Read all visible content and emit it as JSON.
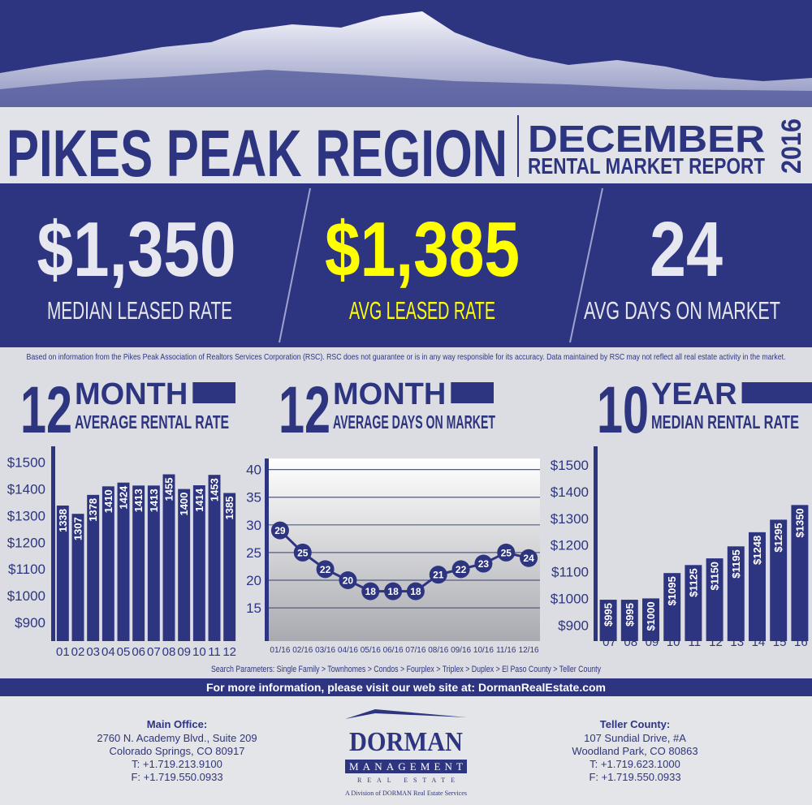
{
  "header": {
    "title": "PIKES PEAK REGION",
    "month": "DECEMBER",
    "report": "RENTAL MARKET REPORT",
    "year": "2016"
  },
  "stats": [
    {
      "value": "$1,350",
      "label": "MEDIAN LEASED RATE"
    },
    {
      "value": "$1,385",
      "label": "AVG LEASED RATE"
    },
    {
      "value": "24",
      "label": "AVG DAYS ON MARKET"
    }
  ],
  "disclaimer": "Based on information from the Pikes Peak Association of Realtors Services Corporation (RSC). RSC does not guarantee or is in any way responsible for its accuracy. Data maintained by RSC may not reflect all real estate activity in the market.",
  "chart_data": [
    {
      "type": "bar",
      "title_number": "12",
      "title_word": "MONTH",
      "subtitle": "AVERAGE RENTAL RATE",
      "categories": [
        "01",
        "02",
        "03",
        "04",
        "05",
        "06",
        "07",
        "08",
        "09",
        "10",
        "11",
        "12"
      ],
      "values": [
        1338,
        1307,
        1378,
        1410,
        1424,
        1413,
        1413,
        1455,
        1400,
        1414,
        1453,
        1385
      ],
      "color": "#2e3580",
      "ylim": [
        830,
        1560
      ],
      "yticks": [
        {
          "value": 900,
          "label": "$900"
        },
        {
          "value": 1000,
          "label": "$1000"
        },
        {
          "value": 1100,
          "label": "$1100"
        },
        {
          "value": 1200,
          "label": "$1200"
        },
        {
          "value": 1300,
          "label": "$1300"
        },
        {
          "value": 1400,
          "label": "$1400"
        },
        {
          "value": 1500,
          "label": "$1500"
        }
      ]
    },
    {
      "type": "line",
      "title_number": "12",
      "title_word": "MONTH",
      "subtitle": "AVERAGE DAYS ON MARKET",
      "categories": [
        "01/16",
        "02/16",
        "03/16",
        "04/16",
        "05/16",
        "06/16",
        "07/16",
        "08/16",
        "09/16",
        "10/16",
        "11/16",
        "12/16"
      ],
      "values": [
        29,
        25,
        22,
        20,
        18,
        18,
        18,
        21,
        22,
        23,
        25,
        24
      ],
      "color": "#2e3580",
      "ylim": [
        9,
        42
      ],
      "yticks": [
        15,
        20,
        25,
        30,
        35,
        40
      ],
      "grid": true
    },
    {
      "type": "bar",
      "title_number": "10",
      "title_word": "YEAR",
      "subtitle": "MEDIAN RENTAL RATE",
      "categories": [
        "'07",
        "'08",
        "'09",
        "'10",
        "'11",
        "'12",
        "'13",
        "'14",
        "'15",
        "'16"
      ],
      "values": [
        995,
        995,
        1000,
        1095,
        1125,
        1150,
        1195,
        1248,
        1295,
        1350
      ],
      "value_labels": [
        "$995",
        "$995",
        "$1000",
        "$1095",
        "$1125",
        "$1150",
        "$1195",
        "$1248",
        "$1295",
        "$1350"
      ],
      "color": "#2e3580",
      "ylim": [
        840,
        1570
      ],
      "yticks": [
        {
          "value": 900,
          "label": "$900"
        },
        {
          "value": 1000,
          "label": "$1000"
        },
        {
          "value": 1100,
          "label": "$1100"
        },
        {
          "value": 1200,
          "label": "$1200"
        },
        {
          "value": 1300,
          "label": "$1300"
        },
        {
          "value": 1400,
          "label": "$1400"
        },
        {
          "value": 1500,
          "label": "$1500"
        }
      ]
    }
  ],
  "search_parameters": "Search Parameters: Single Family > Townhomes > Condos > Fourplex > Triplex > Duplex > El Paso County > Teller County",
  "web_banner": "For more information, please visit our web site at: DormanRealEstate.com",
  "offices": [
    {
      "name": "Main Office:",
      "lines": [
        "2760 N. Academy Blvd.,  Suite 209",
        "Colorado Springs, CO 80917",
        "T: +1.719.213.9100",
        "F: +1.719.550.0933"
      ]
    },
    {
      "name": "Teller County:",
      "lines": [
        "107 Sundial Drive, #A",
        "Woodland Park, CO 80863",
        "T: +1.719.623.1000",
        "F: +1.719.550.0933"
      ]
    }
  ],
  "logo": {
    "name": "DORMAN",
    "line": "MANAGEMENT",
    "sub": "REAL ESTATE",
    "division": "A Division of DORMAN Real Estate Services"
  }
}
